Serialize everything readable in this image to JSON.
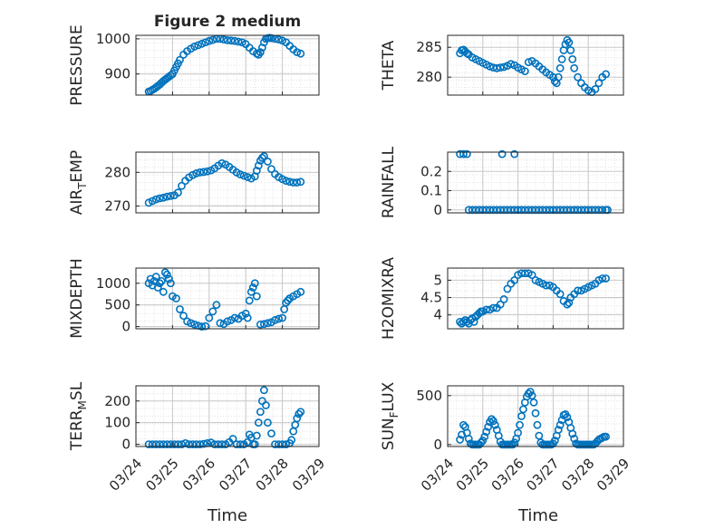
{
  "figure": {
    "title": "Figure 2 medium",
    "marker_color": "#0072BD",
    "xlabel": "Time",
    "xtick_labels": [
      "03/24",
      "03/25",
      "03/26",
      "03/27",
      "03/28",
      "03/29"
    ]
  },
  "chart_data": [
    {
      "type": "scatter",
      "ylabel": "PRESSURE",
      "yticks": [
        "900",
        "1000"
      ],
      "ylim": [
        840,
        1010
      ],
      "xlim": [
        "03/24",
        "03/29"
      ],
      "grid": true,
      "series": [
        {
          "x": [
            0.35,
            0.4,
            0.45,
            0.5,
            0.55,
            0.6,
            0.65,
            0.7,
            0.75,
            0.8,
            0.85,
            0.9,
            0.95,
            1.0,
            1.05,
            1.1,
            1.15,
            1.2,
            1.3,
            1.4,
            1.5,
            1.6,
            1.7,
            1.8,
            1.9,
            2.0,
            2.1,
            2.2,
            2.3,
            2.4,
            2.5,
            2.6,
            2.7,
            2.8,
            2.9,
            3.0,
            3.1,
            3.2,
            3.3,
            3.35,
            3.4,
            3.45,
            3.5,
            3.55,
            3.6,
            3.65,
            3.7,
            3.8,
            3.9,
            4.0,
            4.1,
            4.2,
            4.3,
            4.4,
            4.5
          ],
          "values": [
            850,
            852,
            855,
            858,
            862,
            866,
            870,
            875,
            880,
            884,
            888,
            892,
            896,
            900,
            910,
            920,
            930,
            940,
            955,
            965,
            972,
            978,
            982,
            986,
            990,
            994,
            997,
            1000,
            1000,
            998,
            996,
            995,
            994,
            992,
            990,
            985,
            975,
            965,
            958,
            955,
            962,
            975,
            990,
            1000,
            1002,
            1003,
            1002,
            1000,
            998,
            995,
            990,
            980,
            970,
            962,
            958
          ]
        }
      ]
    },
    {
      "type": "scatter",
      "ylabel": "THETA",
      "yticks": [
        "280",
        "285"
      ],
      "ylim": [
        277,
        287
      ],
      "xlim": [
        "03/24",
        "03/29"
      ],
      "grid": true,
      "series": [
        {
          "x": [
            0.35,
            0.4,
            0.45,
            0.5,
            0.55,
            0.6,
            0.7,
            0.8,
            0.9,
            1.0,
            1.1,
            1.2,
            1.3,
            1.4,
            1.5,
            1.6,
            1.7,
            1.8,
            1.9,
            2.0,
            2.1,
            2.2,
            2.3,
            2.4,
            2.5,
            2.6,
            2.7,
            2.8,
            2.9,
            3.0,
            3.05,
            3.1,
            3.15,
            3.2,
            3.25,
            3.3,
            3.35,
            3.4,
            3.45,
            3.5,
            3.55,
            3.6,
            3.7,
            3.8,
            3.9,
            4.0,
            4.1,
            4.2,
            4.3,
            4.4,
            4.5
          ],
          "values": [
            284,
            284.5,
            284.6,
            284.3,
            284,
            283.8,
            283.3,
            283,
            282.7,
            282.4,
            282.1,
            281.8,
            281.6,
            281.5,
            281.6,
            281.7,
            281.9,
            282.2,
            282,
            281.6,
            281.3,
            281,
            282.5,
            282.7,
            282.3,
            281.8,
            281.3,
            280.8,
            280.4,
            280,
            279.3,
            279,
            280,
            281.5,
            283,
            284.5,
            285.5,
            286.2,
            285.8,
            284.5,
            283,
            281.5,
            280,
            279,
            278.3,
            277.8,
            277.5,
            278,
            279,
            280,
            280.5
          ]
        }
      ]
    },
    {
      "type": "scatter",
      "ylabel_main": "AIR",
      "ylabel_sub": "T",
      "ylabel_tail": "EMP",
      "yticks": [
        "270",
        "280"
      ],
      "ylim": [
        268,
        286
      ],
      "xlim": [
        "03/24",
        "03/29"
      ],
      "grid": true,
      "series": [
        {
          "x": [
            0.35,
            0.45,
            0.55,
            0.65,
            0.75,
            0.85,
            0.95,
            1.05,
            1.15,
            1.25,
            1.35,
            1.45,
            1.55,
            1.65,
            1.75,
            1.85,
            1.95,
            2.05,
            2.15,
            2.25,
            2.35,
            2.45,
            2.55,
            2.65,
            2.75,
            2.85,
            2.95,
            3.05,
            3.15,
            3.25,
            3.3,
            3.35,
            3.4,
            3.45,
            3.5,
            3.6,
            3.7,
            3.8,
            3.9,
            4.0,
            4.1,
            4.2,
            4.3,
            4.4,
            4.5
          ],
          "values": [
            271,
            271.5,
            272,
            272.3,
            272.5,
            272.8,
            273,
            273.2,
            274,
            276,
            277.5,
            278.5,
            279.2,
            279.7,
            280,
            280.1,
            280.3,
            280.6,
            281.2,
            282,
            282.7,
            282.3,
            281.6,
            280.8,
            280,
            279.4,
            279,
            278.6,
            278.2,
            278.8,
            280.5,
            282,
            283.5,
            284.3,
            284.8,
            283.2,
            281,
            279.5,
            278.6,
            278,
            277.5,
            277.2,
            277,
            277,
            277.2
          ]
        }
      ]
    },
    {
      "type": "scatter",
      "ylabel": "RAINFALL",
      "yticks": [
        "0",
        "0.1",
        "0.2"
      ],
      "ylim": [
        -0.015,
        0.3
      ],
      "xlim": [
        "03/24",
        "03/29"
      ],
      "grid": true,
      "series": [
        {
          "x": [
            0.35,
            0.45,
            0.55,
            0.6,
            0.7,
            0.8,
            0.9,
            1.0,
            1.1,
            1.2,
            1.3,
            1.4,
            1.5,
            1.6,
            1.7,
            1.8,
            1.9,
            2.0,
            2.1,
            2.2,
            2.3,
            2.4,
            2.5,
            2.6,
            2.7,
            2.8,
            2.9,
            3.0,
            3.1,
            3.2,
            3.3,
            3.4,
            3.5,
            3.6,
            3.7,
            3.8,
            3.9,
            4.0,
            4.1,
            4.2,
            4.3,
            4.4,
            4.5,
            4.55
          ],
          "values": [
            0.29,
            0.29,
            0.29,
            0,
            0,
            0,
            0,
            0,
            0,
            0,
            0,
            0,
            0,
            0,
            0,
            0,
            0,
            0,
            0,
            0,
            0,
            0,
            0,
            0,
            0,
            0,
            0,
            0,
            0,
            0,
            0,
            0,
            0,
            0,
            0,
            0,
            0,
            0,
            0,
            0,
            0,
            0,
            0,
            0
          ],
          "extra": [
            {
              "x": 1.55,
              "v": 0.29
            },
            {
              "x": 1.9,
              "v": 0.29
            }
          ]
        }
      ]
    },
    {
      "type": "scatter",
      "ylabel": "MIXDEPTH",
      "yticks": [
        "0",
        "500",
        "1000"
      ],
      "ylim": [
        -50,
        1350
      ],
      "xlim": [
        "03/24",
        "03/29"
      ],
      "grid": true,
      "series": [
        {
          "x": [
            0.35,
            0.4,
            0.45,
            0.5,
            0.55,
            0.6,
            0.65,
            0.7,
            0.75,
            0.8,
            0.85,
            0.9,
            0.95,
            1.0,
            1.1,
            1.2,
            1.3,
            1.4,
            1.5,
            1.6,
            1.7,
            1.8,
            1.9,
            2.0,
            2.1,
            2.2,
            2.3,
            2.4,
            2.5,
            2.6,
            2.7,
            2.8,
            2.9,
            3.0,
            3.05,
            3.1,
            3.15,
            3.2,
            3.25,
            3.3,
            3.4,
            3.5,
            3.6,
            3.7,
            3.8,
            3.9,
            4.0,
            4.05,
            4.1,
            4.15,
            4.2,
            4.3,
            4.4,
            4.5
          ],
          "values": [
            1000,
            1100,
            950,
            1050,
            1150,
            900,
            1000,
            1050,
            800,
            1250,
            1200,
            1100,
            1000,
            700,
            650,
            400,
            250,
            120,
            80,
            50,
            20,
            0,
            10,
            200,
            350,
            500,
            80,
            60,
            120,
            150,
            200,
            180,
            250,
            300,
            200,
            600,
            800,
            900,
            1000,
            700,
            50,
            60,
            80,
            100,
            150,
            180,
            200,
            400,
            550,
            600,
            650,
            700,
            750,
            800
          ]
        }
      ]
    },
    {
      "type": "scatter",
      "ylabel": "H2OMIXRA",
      "yticks": [
        "4",
        "4.5",
        "5"
      ],
      "ylim": [
        3.6,
        5.35
      ],
      "xlim": [
        "03/24",
        "03/29"
      ],
      "grid": true,
      "series": [
        {
          "x": [
            0.35,
            0.4,
            0.45,
            0.5,
            0.55,
            0.6,
            0.65,
            0.7,
            0.75,
            0.8,
            0.85,
            0.9,
            0.95,
            1.0,
            1.1,
            1.2,
            1.3,
            1.4,
            1.5,
            1.6,
            1.7,
            1.8,
            1.9,
            2.0,
            2.1,
            2.2,
            2.3,
            2.4,
            2.5,
            2.6,
            2.7,
            2.8,
            2.9,
            3.0,
            3.1,
            3.2,
            3.3,
            3.4,
            3.45,
            3.5,
            3.6,
            3.7,
            3.8,
            3.9,
            4.0,
            4.1,
            4.2,
            4.3,
            4.4,
            4.5
          ],
          "values": [
            3.8,
            3.75,
            3.8,
            3.85,
            3.8,
            3.75,
            3.85,
            3.9,
            3.8,
            3.95,
            4.0,
            4.05,
            4.1,
            4.1,
            4.15,
            4.15,
            4.2,
            4.2,
            4.3,
            4.45,
            4.75,
            4.9,
            5.0,
            5.15,
            5.2,
            5.2,
            5.2,
            5.15,
            5.0,
            4.95,
            4.9,
            4.85,
            4.85,
            4.8,
            4.7,
            4.6,
            4.4,
            4.3,
            4.35,
            4.5,
            4.6,
            4.7,
            4.7,
            4.75,
            4.8,
            4.85,
            4.9,
            5.0,
            5.05,
            5.05
          ]
        }
      ]
    },
    {
      "type": "scatter",
      "ylabel_main": "TERR",
      "ylabel_sub": "M",
      "ylabel_tail": "SL",
      "yticks": [
        "0",
        "100",
        "200"
      ],
      "ylim": [
        -10,
        270
      ],
      "xlim": [
        "03/24",
        "03/29"
      ],
      "grid": true,
      "series": [
        {
          "x": [
            0.35,
            0.45,
            0.55,
            0.65,
            0.75,
            0.85,
            0.95,
            1.05,
            1.15,
            1.25,
            1.35,
            1.45,
            1.55,
            1.65,
            1.75,
            1.85,
            1.95,
            2.05,
            2.15,
            2.25,
            2.35,
            2.45,
            2.55,
            2.65,
            2.75,
            2.85,
            2.95,
            3.05,
            3.1,
            3.15,
            3.2,
            3.25,
            3.3,
            3.35,
            3.4,
            3.45,
            3.5,
            3.55,
            3.6,
            3.7,
            3.8,
            3.9,
            4.0,
            4.1,
            4.2,
            4.25,
            4.3,
            4.35,
            4.4,
            4.45,
            4.5
          ],
          "values": [
            0,
            0,
            0,
            0,
            0,
            0,
            0,
            0,
            0,
            0,
            5,
            0,
            0,
            0,
            0,
            2,
            5,
            8,
            0,
            0,
            0,
            0,
            10,
            25,
            0,
            0,
            0,
            10,
            45,
            30,
            0,
            0,
            40,
            100,
            150,
            200,
            250,
            180,
            100,
            50,
            0,
            0,
            0,
            0,
            5,
            20,
            60,
            90,
            120,
            140,
            150
          ]
        }
      ]
    },
    {
      "type": "scatter",
      "ylabel_main": "SUN",
      "ylabel_sub": "F",
      "ylabel_tail": "LUX",
      "yticks": [
        "0",
        "500"
      ],
      "ylim": [
        -20,
        600
      ],
      "xlim": [
        "03/24",
        "03/29"
      ],
      "grid": true,
      "series": [
        {
          "x": [
            0.35,
            0.4,
            0.45,
            0.5,
            0.55,
            0.6,
            0.65,
            0.7,
            0.75,
            0.8,
            0.85,
            0.9,
            0.95,
            1.0,
            1.05,
            1.1,
            1.15,
            1.2,
            1.25,
            1.3,
            1.35,
            1.4,
            1.45,
            1.5,
            1.55,
            1.6,
            1.65,
            1.7,
            1.75,
            1.8,
            1.85,
            1.9,
            1.95,
            2.0,
            2.05,
            2.1,
            2.15,
            2.2,
            2.25,
            2.3,
            2.35,
            2.4,
            2.45,
            2.5,
            2.55,
            2.6,
            2.65,
            2.7,
            2.75,
            2.8,
            2.85,
            2.9,
            2.95,
            3.0,
            3.05,
            3.1,
            3.15,
            3.2,
            3.25,
            3.3,
            3.35,
            3.4,
            3.45,
            3.5,
            3.55,
            3.6,
            3.65,
            3.7,
            3.75,
            3.8,
            3.85,
            3.9,
            3.95,
            4.0,
            4.05,
            4.1,
            4.15,
            4.2,
            4.25,
            4.3,
            4.35,
            4.4,
            4.45,
            4.5
          ],
          "values": [
            50,
            100,
            200,
            180,
            120,
            60,
            10,
            0,
            0,
            0,
            0,
            0,
            20,
            40,
            80,
            130,
            180,
            230,
            260,
            240,
            200,
            150,
            90,
            30,
            0,
            0,
            0,
            0,
            0,
            0,
            0,
            20,
            60,
            120,
            200,
            290,
            360,
            430,
            490,
            520,
            540,
            500,
            430,
            320,
            200,
            90,
            20,
            0,
            0,
            0,
            0,
            0,
            0,
            10,
            40,
            90,
            150,
            200,
            250,
            300,
            310,
            280,
            230,
            170,
            110,
            60,
            10,
            0,
            0,
            0,
            0,
            0,
            0,
            0,
            0,
            0,
            0,
            10,
            30,
            50,
            60,
            70,
            80,
            80
          ]
        }
      ]
    }
  ]
}
